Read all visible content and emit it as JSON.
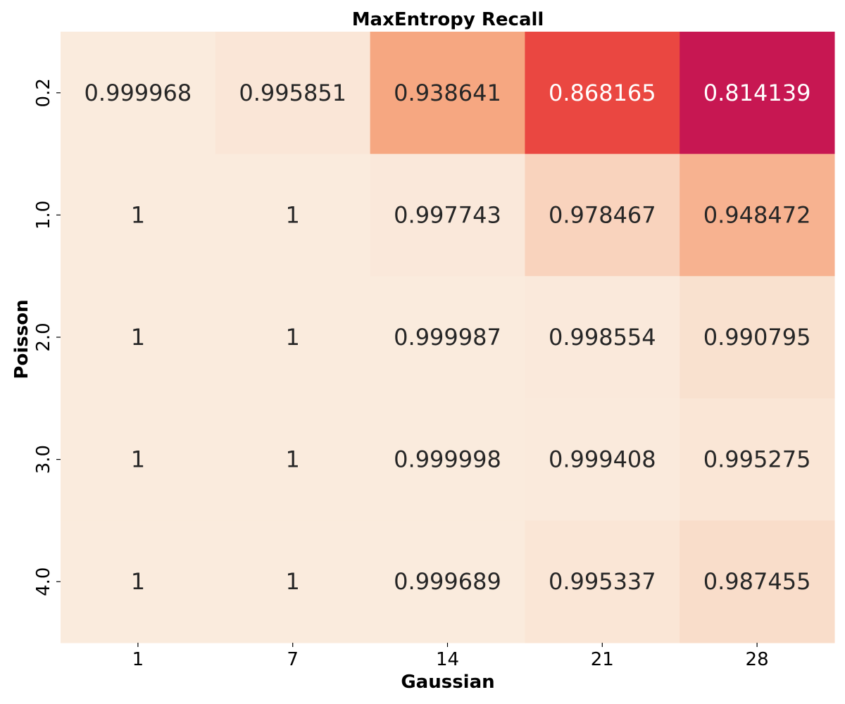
{
  "chart_data": {
    "type": "heatmap",
    "title": "MaxEntropy Recall",
    "xlabel": "Gaussian",
    "ylabel": "Poisson",
    "x_categories": [
      "1",
      "7",
      "14",
      "21",
      "28"
    ],
    "y_categories": [
      "0.2",
      "1.0",
      "2.0",
      "3.0",
      "4.0"
    ],
    "values": [
      [
        0.999968,
        0.995851,
        0.938641,
        0.868165,
        0.814139
      ],
      [
        1,
        1,
        0.997743,
        0.978467,
        0.948472
      ],
      [
        1,
        1,
        0.999987,
        0.998554,
        0.990795
      ],
      [
        1,
        1,
        0.999998,
        0.999408,
        0.995275
      ],
      [
        1,
        1,
        0.999689,
        0.995337,
        0.987455
      ]
    ],
    "cell_labels": [
      [
        "0.999968",
        "0.995851",
        "0.938641",
        "0.868165",
        "0.814139"
      ],
      [
        "1",
        "1",
        "0.997743",
        "0.978467",
        "0.948472"
      ],
      [
        "1",
        "1",
        "0.999987",
        "0.998554",
        "0.990795"
      ],
      [
        "1",
        "1",
        "0.999998",
        "0.999408",
        "0.995275"
      ],
      [
        "1",
        "1",
        "0.999689",
        "0.995337",
        "0.987455"
      ]
    ],
    "colormap": "rocket",
    "vmin": 0.814139,
    "vmax": 1,
    "colorbar": false,
    "grid": false,
    "colors": {
      "low": "#c71752",
      "mid_low": "#ef4e3e",
      "mid": "#f6a680",
      "high": "#faebdd"
    }
  }
}
